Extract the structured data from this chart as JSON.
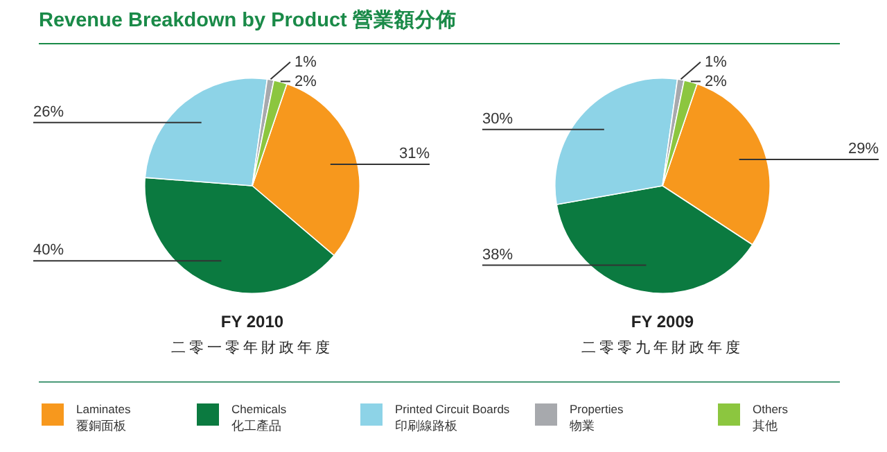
{
  "chart_data": [
    {
      "type": "pie",
      "title": "Revenue Breakdown by Product 營業額分佈",
      "subtitle": "FY 2010\n二零一零年財政年度",
      "legend": "bottom",
      "categories": [
        "Laminates\n覆銅面板",
        "Chemicals\n化工產品",
        "Printed Circuit Boards\n印刷線路板",
        "Properties\n物業",
        "Others\n其他"
      ],
      "values": [
        31,
        40,
        26,
        1,
        2
      ],
      "value_labels": [
        "31%",
        "40%",
        "26%",
        "1%",
        "2%"
      ],
      "colors": [
        "#f7981d",
        "#0b7a40",
        "#8dd3e7",
        "#a7a9ad",
        "#8cc63f"
      ]
    },
    {
      "type": "pie",
      "subtitle": "FY 2009\n二零零九年財政年度",
      "categories": [
        null,
        null,
        null,
        null,
        null
      ],
      "values": [
        29,
        38,
        30,
        1,
        2
      ],
      "value_labels": [
        "29%",
        "38%",
        "30%",
        "1%",
        "2%"
      ],
      "colors": [
        "#f7981d",
        "#0b7a40",
        "#8dd3e7",
        "#a7a9ad",
        "#8cc63f"
      ]
    }
  ]
}
